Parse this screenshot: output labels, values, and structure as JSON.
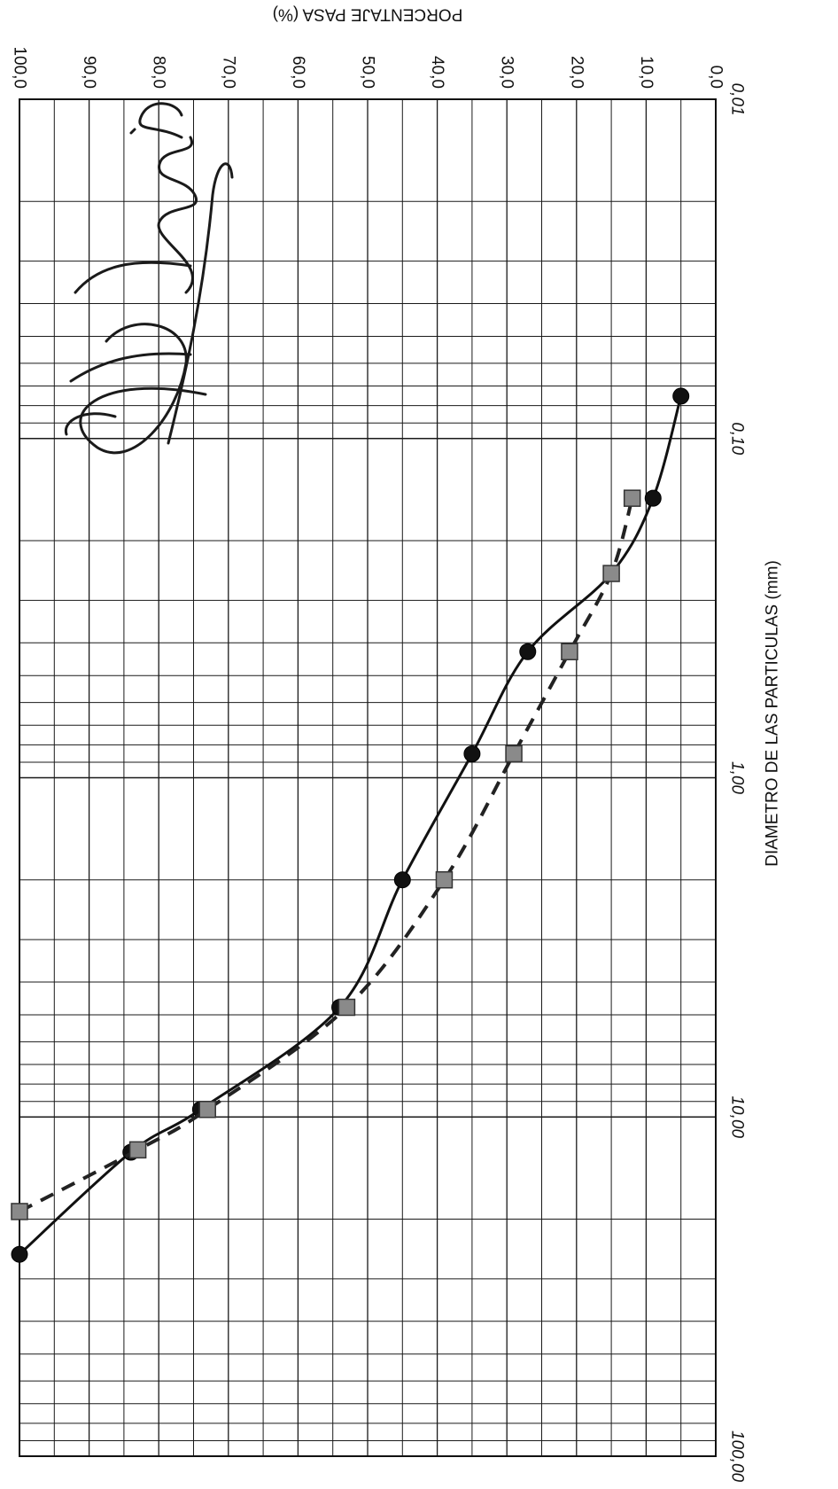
{
  "chart_data": {
    "type": "line",
    "xlabel": "DIAMETRO DE LAS PARTICULAS (mm)",
    "ylabel": "PORCENTAJE PASA (%)",
    "x_scale": "log",
    "xlim": [
      0.01,
      100
    ],
    "ylim": [
      0,
      100
    ],
    "x_ticks": [
      {
        "value": 0.01,
        "label": "0,01"
      },
      {
        "value": 0.1,
        "label": "0,10"
      },
      {
        "value": 1,
        "label": "1,00"
      },
      {
        "value": 10,
        "label": "10,00"
      },
      {
        "value": 100,
        "label": "100,00"
      }
    ],
    "y_ticks": [
      {
        "value": 0,
        "label": "0,0"
      },
      {
        "value": 10,
        "label": "10,0"
      },
      {
        "value": 20,
        "label": "20,0"
      },
      {
        "value": 30,
        "label": "30,0"
      },
      {
        "value": 40,
        "label": "40,0"
      },
      {
        "value": 50,
        "label": "50,0"
      },
      {
        "value": 60,
        "label": "60,0"
      },
      {
        "value": 70,
        "label": "70,0"
      },
      {
        "value": 80,
        "label": "80,0"
      },
      {
        "value": 90,
        "label": "90,0"
      },
      {
        "value": 100,
        "label": "100,0"
      }
    ],
    "grid": true,
    "series": [
      {
        "style": "solid",
        "marker": "circle",
        "color": "#111111",
        "x": [
          25.4,
          12.7,
          9.5,
          4.75,
          2.0,
          0.85,
          0.425,
          0.25,
          0.15,
          0.075
        ],
        "y": [
          100.0,
          84.0,
          74.0,
          54.0,
          45.0,
          35.0,
          27.0,
          15.0,
          9.0,
          5.0
        ]
      },
      {
        "style": "dashed",
        "marker": "square",
        "color": "#222222",
        "x": [
          19.0,
          12.5,
          9.5,
          4.75,
          2.0,
          0.85,
          0.425,
          0.25,
          0.15
        ],
        "y": [
          100.0,
          83.0,
          73.0,
          53.0,
          39.0,
          29.0,
          21.0,
          15.0,
          12.0
        ]
      }
    ]
  }
}
